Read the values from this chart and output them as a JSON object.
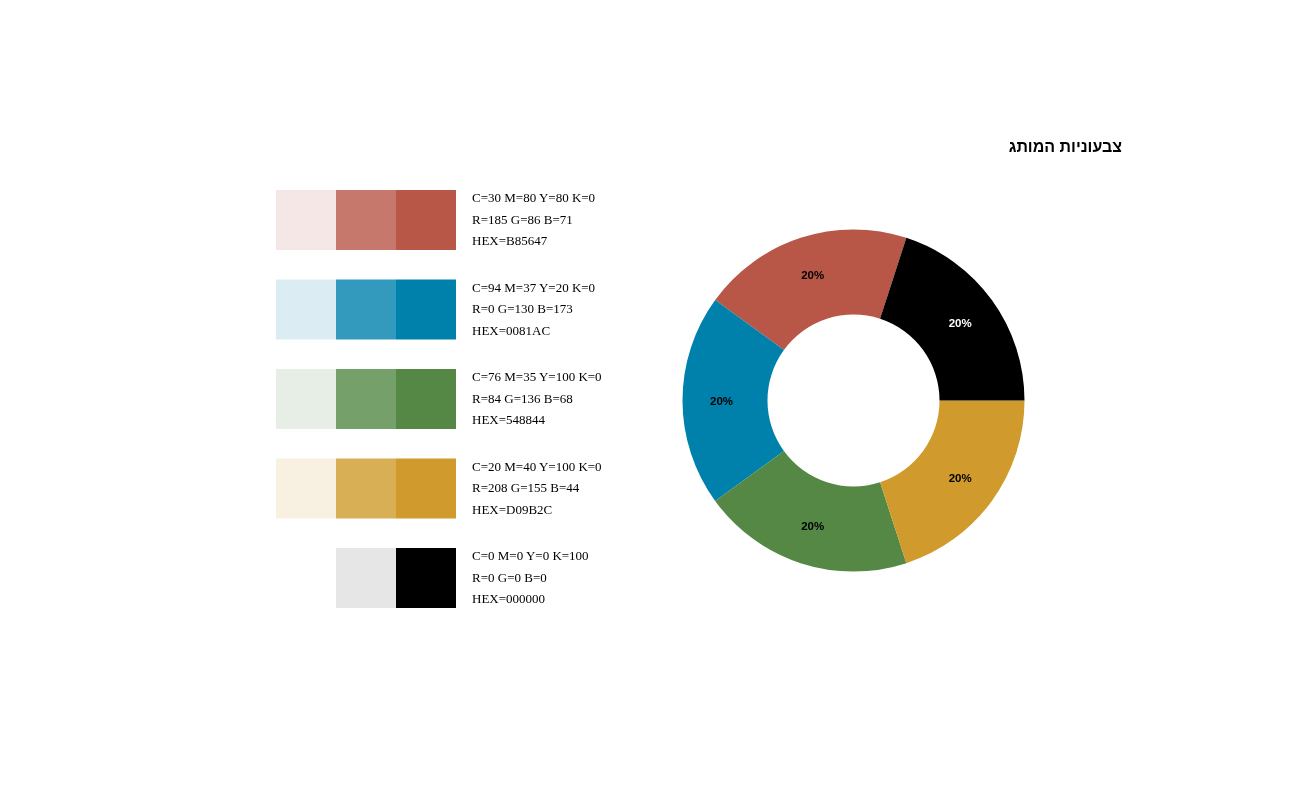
{
  "chart_data": {
    "type": "donut",
    "title": "צבעוניות המותג",
    "categories": [
      null,
      null,
      null,
      null,
      null
    ],
    "values": [
      20,
      20,
      20,
      20,
      20
    ],
    "colors": [
      "#b85647",
      "#0081ac",
      "#548844",
      "#d09b2c",
      "#000000"
    ],
    "value_labels": [
      "20%",
      "20%",
      "20%",
      "20%",
      "20%"
    ],
    "annotations": [
      "C=30 M=80 Y=80 K=0",
      "R=185 G=86 B=71",
      "HEX=B85647",
      "C=94 M=37 Y=20 K=0",
      "R=0 G=130 B=173",
      "HEX=0081AC",
      "C=76 M=35 Y=100 K=0",
      "R=84 G=136 B=68",
      "HEX=548844",
      "C=20 M=40 Y=100 K=0",
      "R=208 G=155 B=44",
      "HEX=D09B2C",
      "C=0 M=0 Y=0 K=100",
      "R=0 G=0 B=0",
      "HEX=000000"
    ]
  }
}
